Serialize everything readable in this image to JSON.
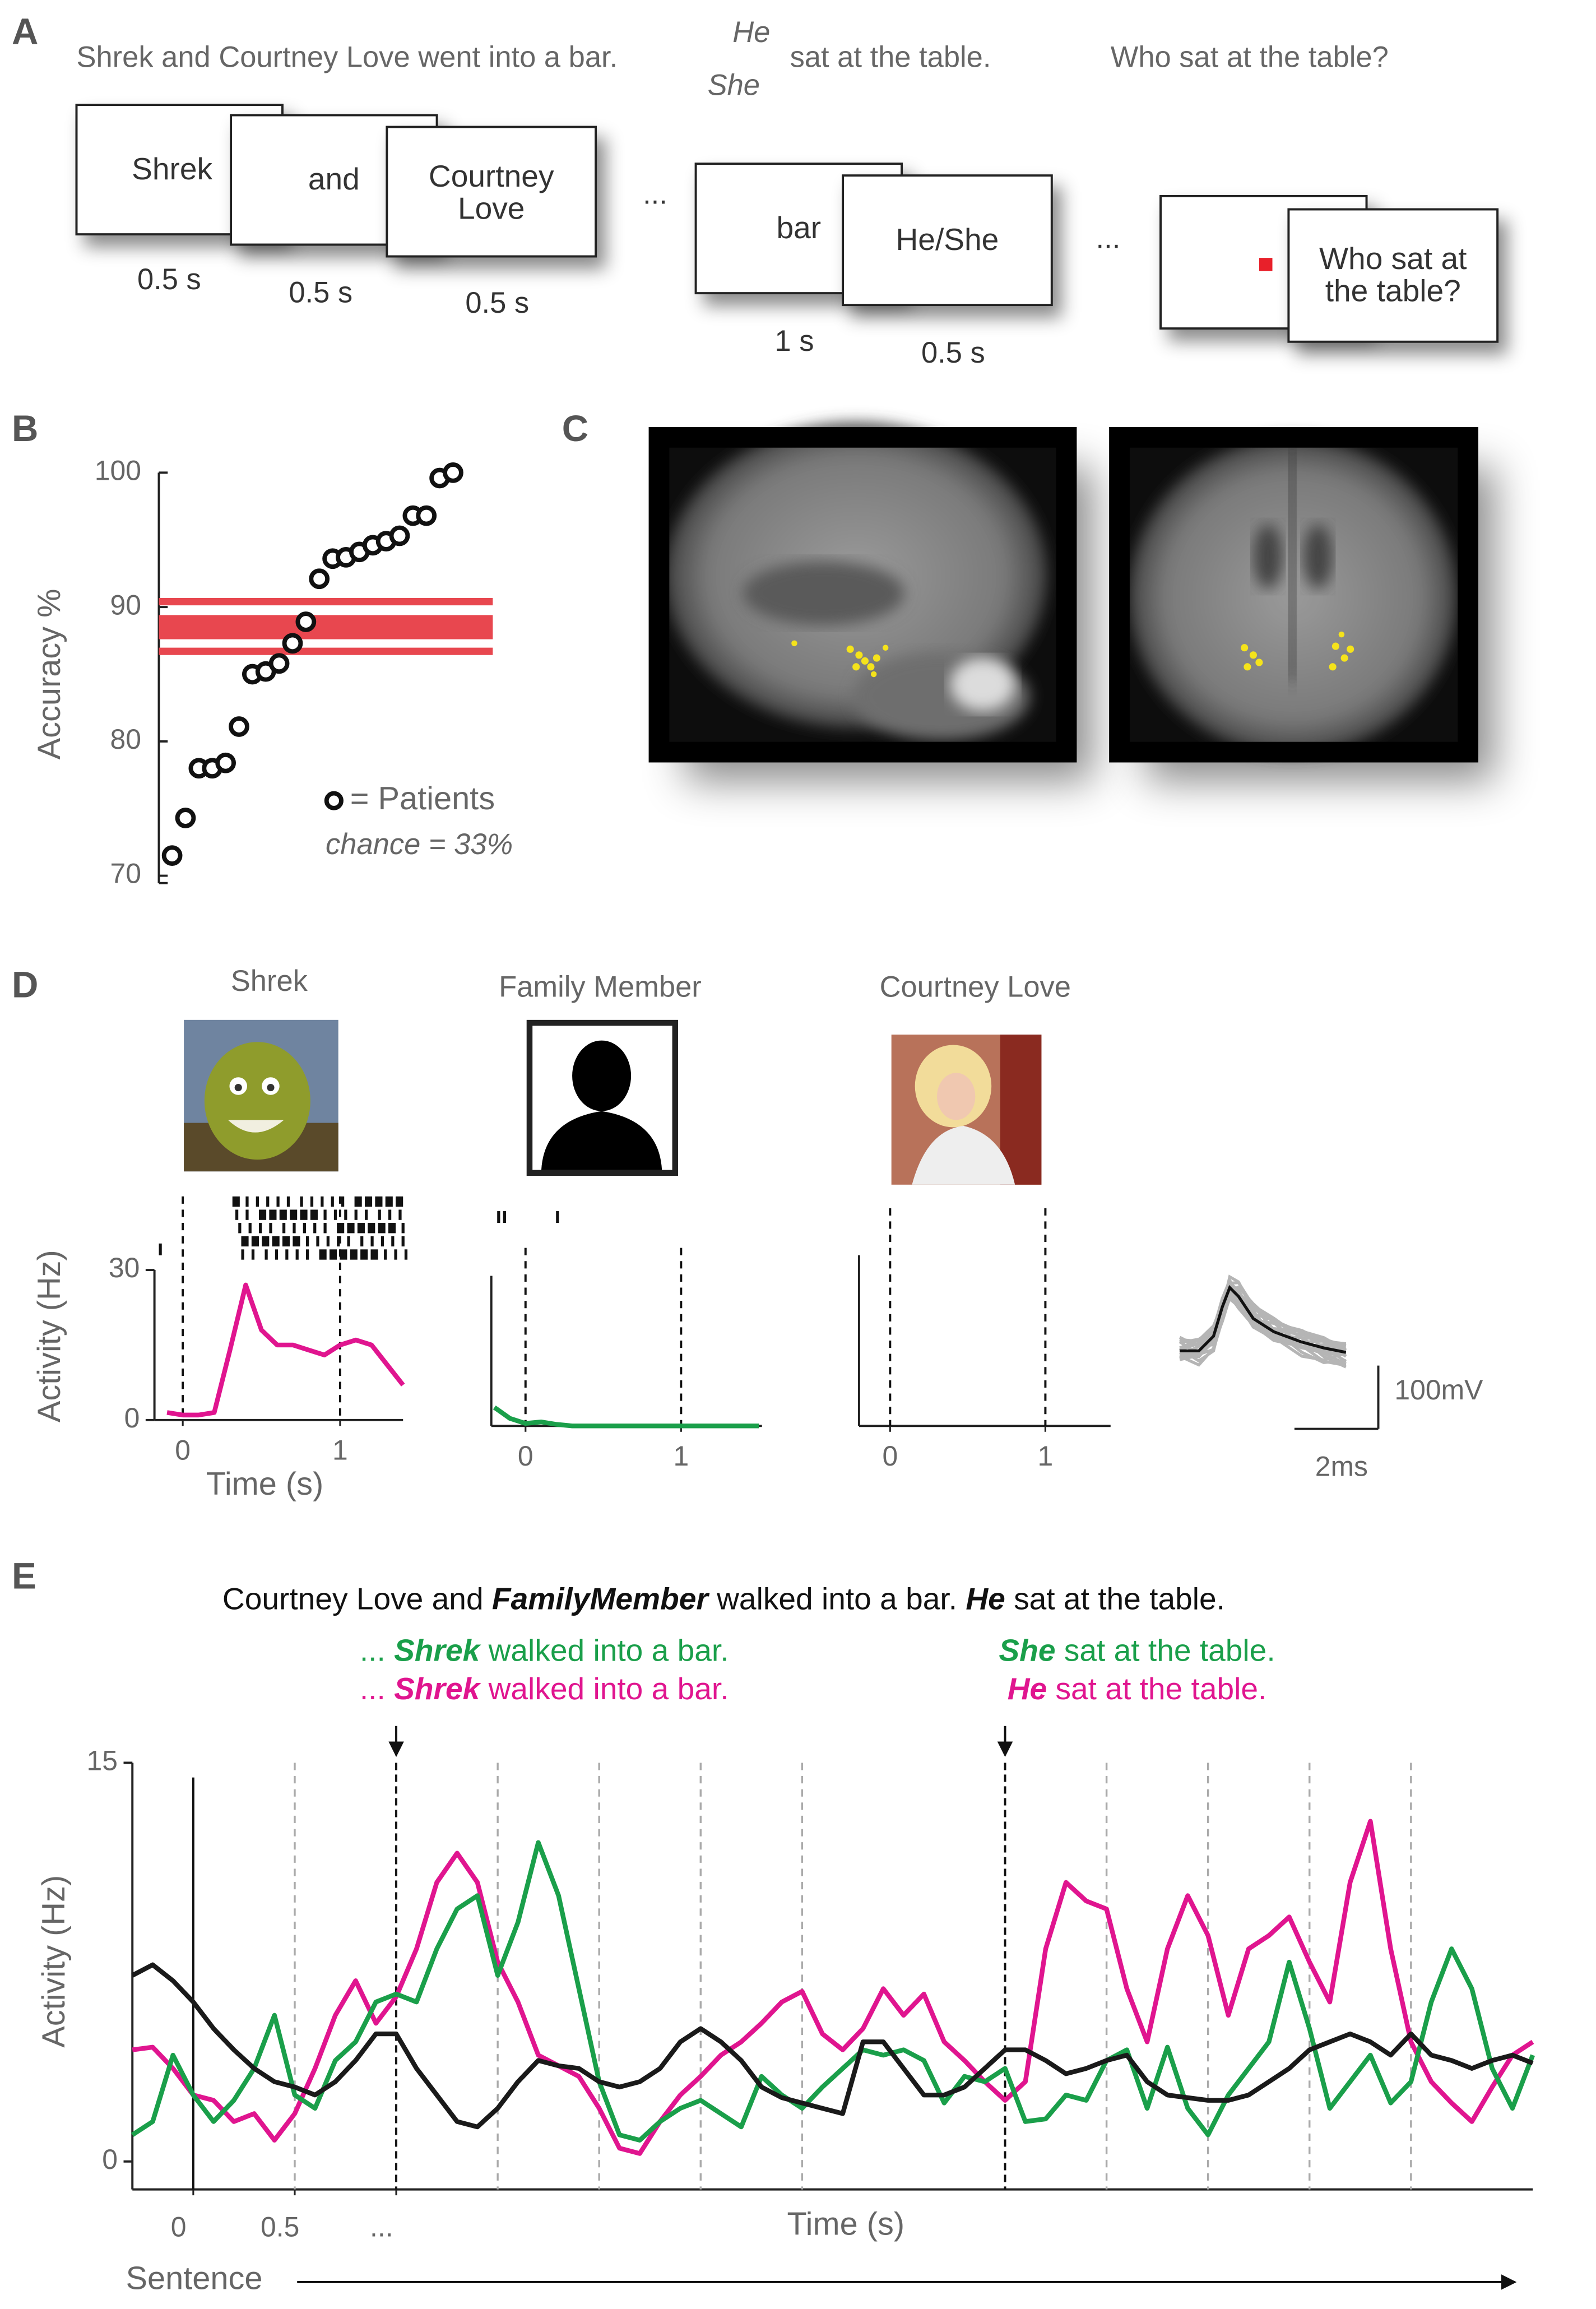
{
  "panel_labels": [
    "A",
    "B",
    "C",
    "D",
    "E"
  ],
  "panel_a": {
    "sentence": "Shrek and Courtney Love went into a bar.",
    "pronouns": [
      "He",
      "She"
    ],
    "sentence_end": "sat at the table.",
    "question": "Who sat at the table?",
    "ellipsis": "...",
    "cards": [
      {
        "text": "Shrek",
        "duration": "0.5 s"
      },
      {
        "text": "and",
        "duration": "0.5 s"
      },
      {
        "text": [
          "Courtney",
          "Love"
        ],
        "duration": "0.5 s"
      },
      {
        "text": "bar",
        "duration": "1 s"
      },
      {
        "text": "He/She",
        "duration": "0.5 s"
      },
      {
        "text": [
          "Who sat at",
          "the table?"
        ]
      }
    ]
  },
  "waveform": {
    "amplitude": "100mV",
    "duration": "2ms"
  },
  "chart_data": [
    {
      "type": "dot",
      "ylabel": "Accuracy %",
      "values": [
        71.5,
        74.3,
        78,
        78,
        78.4,
        81.1,
        85,
        85.2,
        85.8,
        87.3,
        88.9,
        92.1,
        93.6,
        93.7,
        94.1,
        94.6,
        94.9,
        95.3,
        96.8,
        96.8,
        99.6,
        100
      ],
      "color": "#111111",
      "ylim": [
        70,
        100
      ],
      "yticks": [
        70,
        80,
        90,
        100
      ],
      "band": {
        "outer": [
          86.7,
          90.4
        ],
        "inner": [
          87.6,
          89.4
        ],
        "color": "#e8474f"
      },
      "legend": "= Patients",
      "annotation": "chance = 33%"
    },
    {
      "type": "line",
      "title": "Shrek",
      "xlabel": "Time (s)",
      "ylabel": "Activity (Hz)",
      "x": [
        -0.1,
        0,
        0.1,
        0.2,
        0.3,
        0.4,
        0.5,
        0.6,
        0.7,
        0.8,
        0.9,
        1,
        1.1,
        1.2,
        1.3,
        1.4
      ],
      "series": [
        {
          "color": "#e0158f",
          "values": [
            1.5,
            1,
            1,
            1.5,
            14,
            27,
            18,
            15,
            15,
            14,
            13,
            15,
            16,
            15,
            11,
            7
          ]
        }
      ],
      "xlim": [
        -0.18,
        1.4
      ],
      "ylim": [
        0,
        30
      ],
      "xticks": [
        0,
        1
      ],
      "yticks": [
        0,
        30
      ],
      "stimulus_lines": [
        0,
        1
      ]
    },
    {
      "type": "line",
      "title": "Family Member",
      "x": [
        -0.2,
        -0.1,
        0,
        0.1,
        0.2,
        0.3,
        0.5,
        1,
        1.5
      ],
      "series": [
        {
          "color": "#1a9f4a",
          "values": [
            3.7,
            1.5,
            0.5,
            0.8,
            0.3,
            0,
            0,
            0,
            0
          ]
        }
      ],
      "xlim": [
        -0.22,
        1.52
      ],
      "ylim": [
        0,
        30
      ],
      "xticks": [
        0,
        1
      ],
      "stimulus_lines": [
        0,
        1
      ]
    },
    {
      "type": "line",
      "title": "Courtney Love",
      "xlim": [
        -0.2,
        1.42
      ],
      "ylim": [
        0,
        30
      ],
      "xticks": [
        0,
        1
      ],
      "stimulus_lines": [
        0,
        1
      ]
    },
    {
      "type": "line",
      "ylabel": "Activity (Hz)",
      "xlabel": "Time (s)",
      "axis_caption": "Sentence",
      "sentence": [
        "Courtney Love and ",
        "FamilyMember",
        " walked into a bar. ",
        "He",
        " sat at the table."
      ],
      "probes": [
        {
          "green": [
            "... ",
            "Shrek",
            " walked into a bar."
          ],
          "magenta": [
            "... ",
            "Shrek",
            " walked into a bar."
          ]
        },
        {
          "green": [
            "She",
            " sat at the table."
          ],
          "magenta": [
            "He",
            " sat at the table."
          ]
        }
      ],
      "x": [
        -0.3,
        -0.2,
        -0.1,
        0,
        0.1,
        0.2,
        0.3,
        0.4,
        0.5,
        0.6,
        0.7,
        0.8,
        0.9,
        1,
        1.1,
        1.2,
        1.3,
        1.4,
        1.5,
        1.6,
        1.7,
        1.8,
        1.9,
        2,
        2.1,
        2.2,
        2.3,
        2.4,
        2.5,
        2.6,
        2.7,
        2.8,
        2.9,
        3,
        3.1,
        3.2,
        3.3,
        3.4,
        3.5,
        3.6,
        3.7,
        3.8,
        3.9,
        4,
        4.1,
        4.2,
        4.3,
        4.4,
        4.5,
        4.6,
        4.7,
        4.8,
        4.9,
        5,
        5.1,
        5.2,
        5.3,
        5.4,
        5.5,
        5.6,
        5.7,
        5.8,
        5.9,
        6,
        6.1,
        6.2,
        6.3,
        6.4,
        6.5,
        6.6
      ],
      "series": [
        {
          "color": "#e0158f",
          "values": [
            4.2,
            4.3,
            3.5,
            2.5,
            2.3,
            1.5,
            1.8,
            0.8,
            1.8,
            3.5,
            5.5,
            6.8,
            5.2,
            6.2,
            8,
            10.5,
            11.6,
            10.5,
            7.5,
            6,
            4,
            3.6,
            3.2,
            2,
            0.5,
            0.3,
            1.5,
            2.5,
            3.2,
            4,
            4.5,
            5.2,
            6,
            6.4,
            4.8,
            4.2,
            5,
            6.5,
            5.5,
            6.3,
            4.5,
            3.8,
            3,
            2.3,
            3,
            8,
            10.5,
            9.8,
            9.5,
            6.5,
            4.5,
            8,
            10,
            8.5,
            5.5,
            8,
            8.5,
            9.2,
            7.5,
            6,
            10.5,
            12.8,
            8,
            4.5,
            3,
            2.2,
            1.5,
            2.8,
            4,
            4.5
          ]
        },
        {
          "color": "#1a9f4a",
          "values": [
            1.0,
            1.5,
            4.0,
            2.5,
            1.5,
            2.3,
            3.5,
            5.5,
            2.5,
            2.0,
            3.8,
            4.5,
            6.0,
            6.3,
            6.0,
            8.0,
            9.5,
            10.0,
            7.0,
            9.0,
            12.0,
            10.0,
            6.5,
            3.0,
            1.0,
            0.8,
            1.5,
            2.0,
            2.3,
            1.8,
            1.3,
            3.2,
            2.5,
            2.0,
            2.8,
            3.5,
            4.2,
            4.0,
            4.2,
            3.8,
            2.2,
            3.2,
            3.0,
            3.5,
            1.5,
            1.6,
            2.5,
            2.3,
            3.8,
            4.2,
            2.0,
            4.3,
            2.0,
            1.0,
            2.5,
            3.5,
            4.5,
            7.5,
            5.0,
            2.0,
            3.0,
            4.0,
            2.2,
            3.0,
            6.0,
            8.0,
            6.5,
            3.5,
            2.0,
            4.0
          ]
        },
        {
          "color": "#1a1a1a",
          "values": [
            7.0,
            7.4,
            6.8,
            6.0,
            5.0,
            4.2,
            3.5,
            3.0,
            2.8,
            2.5,
            3.0,
            3.8,
            4.8,
            4.8,
            3.5,
            2.5,
            1.5,
            1.3,
            2.0,
            3.0,
            3.8,
            3.6,
            3.5,
            3.0,
            2.8,
            3.0,
            3.5,
            4.5,
            5.0,
            4.5,
            3.8,
            2.8,
            2.4,
            2.2,
            2.0,
            1.8,
            4.5,
            4.5,
            3.5,
            2.5,
            2.5,
            2.8,
            3.5,
            4.2,
            4.2,
            3.8,
            3.3,
            3.5,
            3.8,
            4.0,
            3.0,
            2.5,
            2.4,
            2.3,
            2.3,
            2.5,
            3.0,
            3.5,
            4.2,
            4.5,
            4.8,
            4.5,
            4.0,
            4.8,
            4.0,
            3.8,
            3.5,
            3.8,
            4.0,
            3.7
          ]
        }
      ],
      "xlim": [
        -0.3,
        6.6
      ],
      "ylim": [
        0,
        15
      ],
      "yticks": [
        0,
        15
      ],
      "xticks": [
        0,
        0.5,
        {
          "value": 1,
          "label": "..."
        }
      ],
      "onset_line": 0,
      "word_lines": [
        0.5,
        1.5,
        2,
        2.5,
        3,
        4.5,
        5,
        5.5,
        6
      ],
      "probe_lines": [
        1,
        4
      ]
    }
  ]
}
